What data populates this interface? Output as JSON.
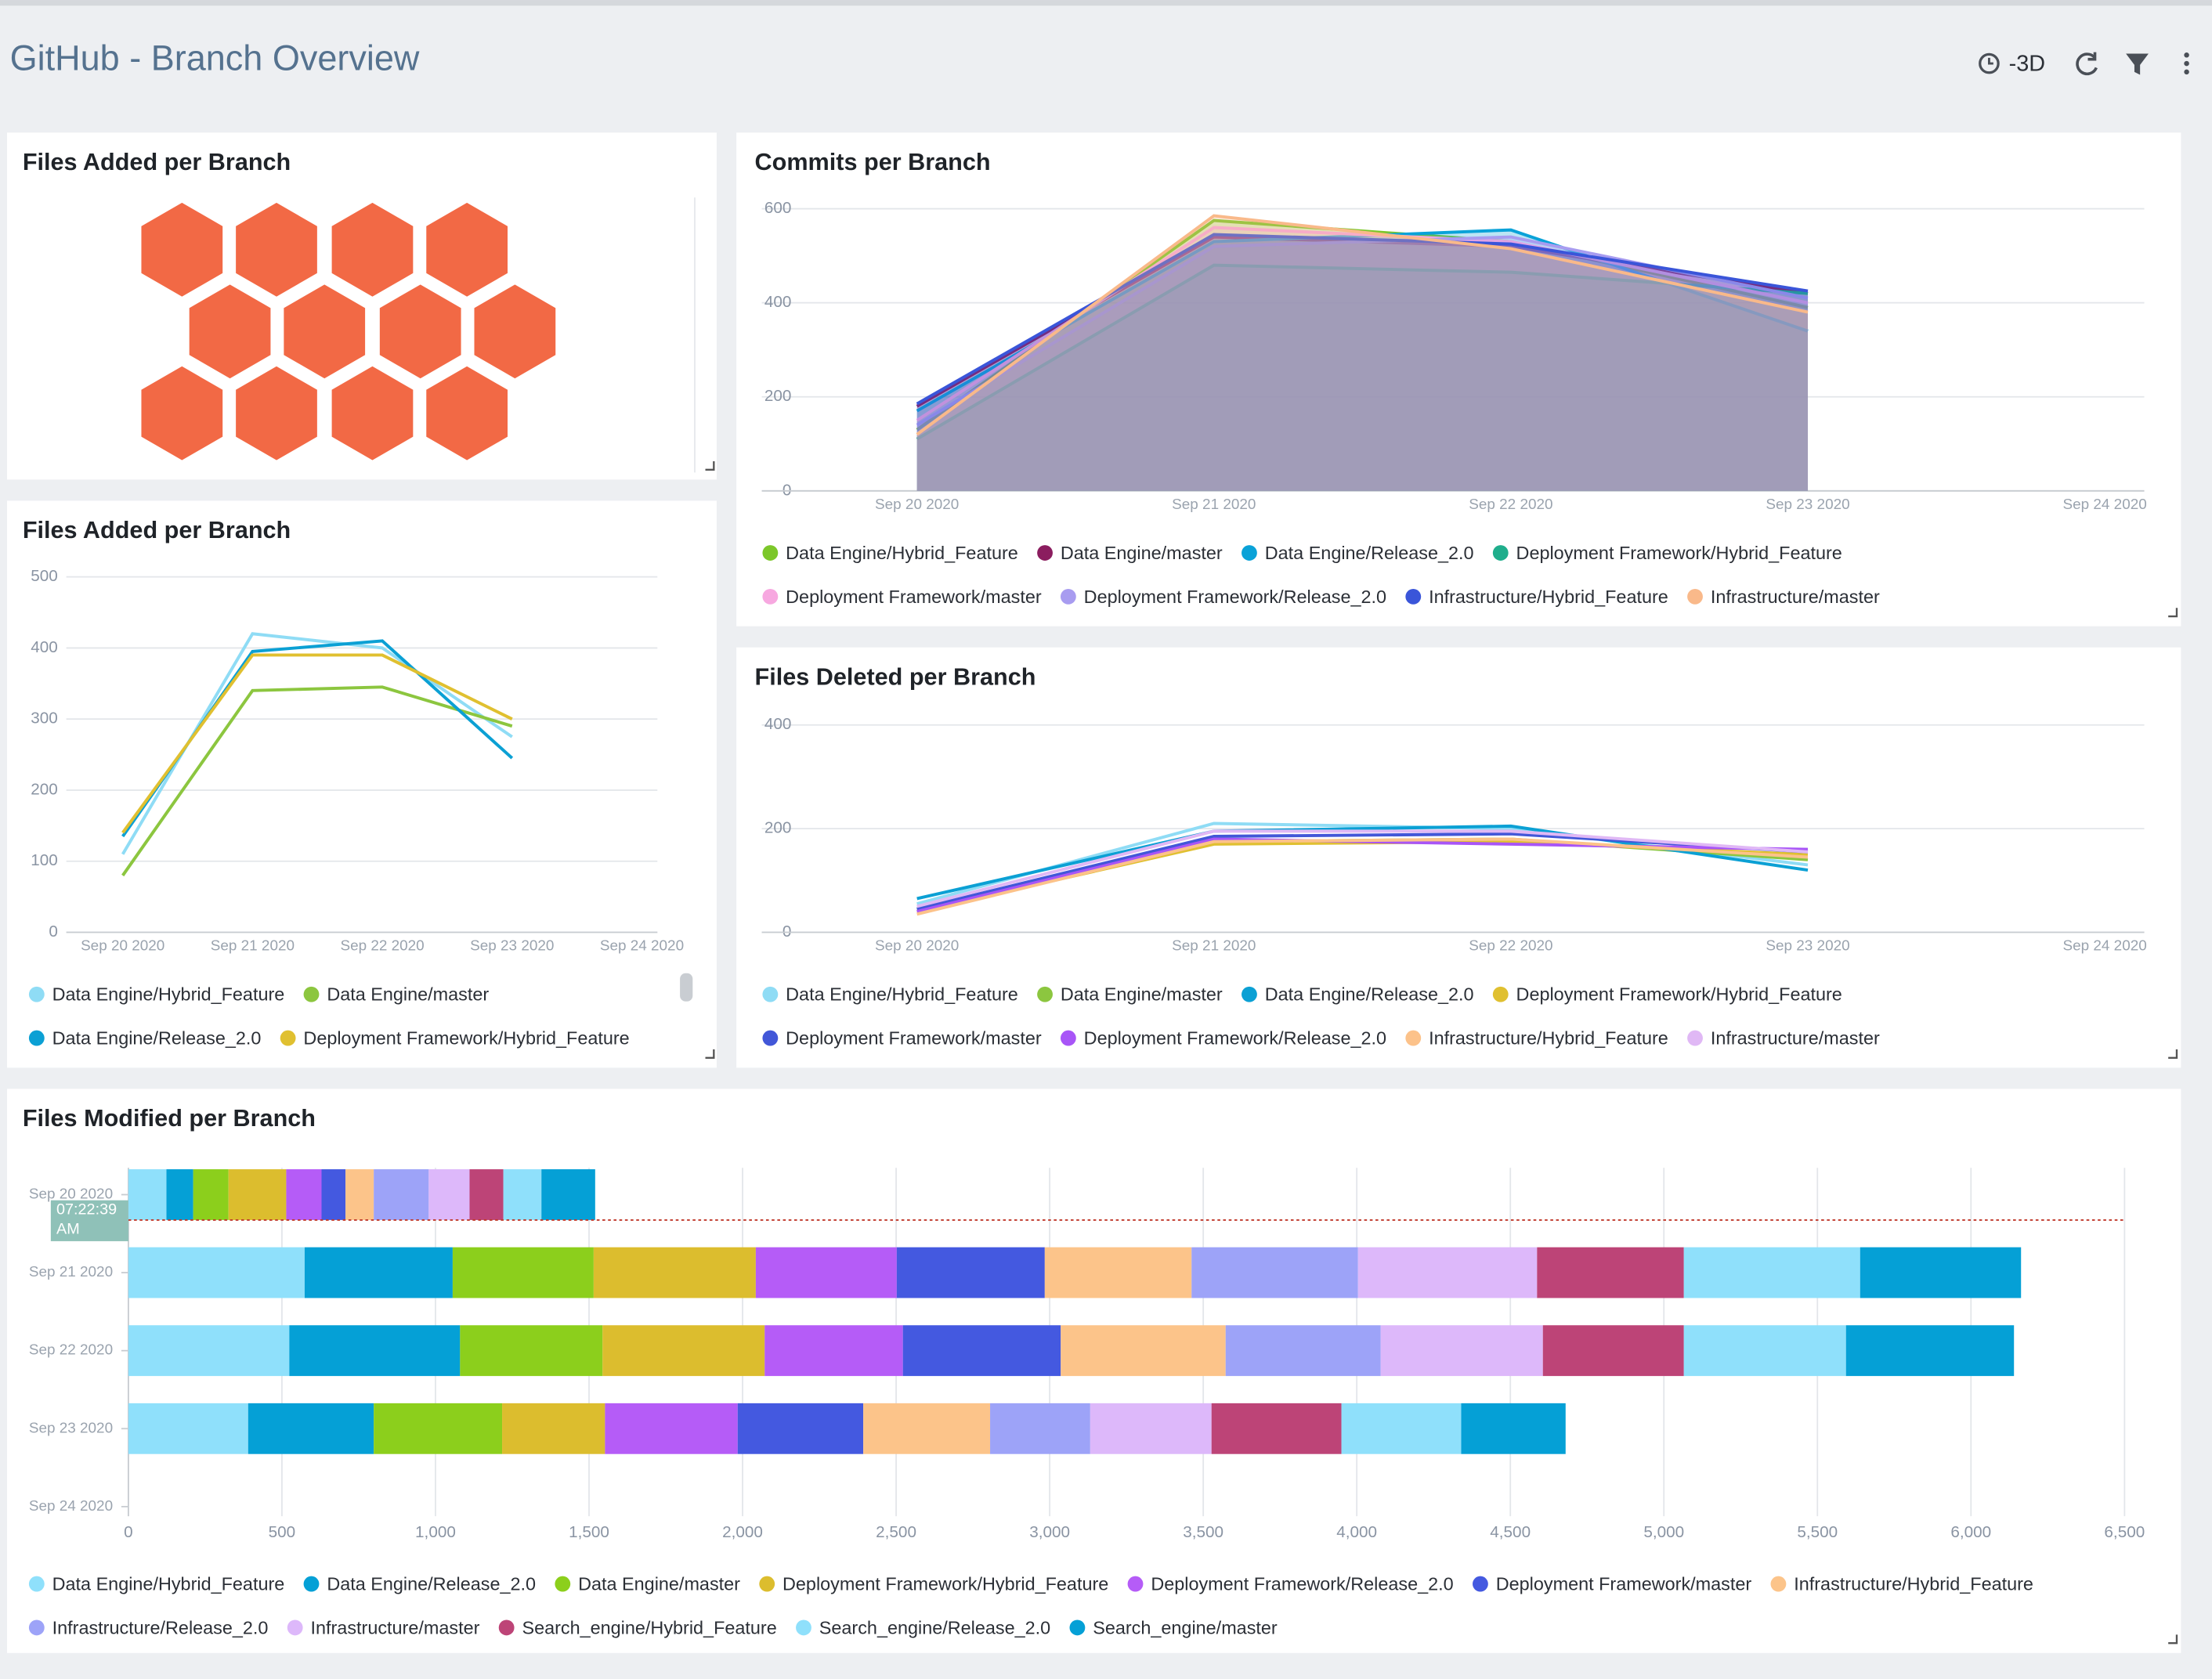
{
  "header": {
    "title": "GitHub - Branch Overview",
    "time_range": "-3D"
  },
  "chart_data": [
    {
      "type": "honeycomb",
      "title": "Files Added per Branch",
      "color": "#f26945"
    },
    {
      "type": "area",
      "title": "Commits per Branch",
      "x": [
        "Sep 20 2020",
        "Sep 21 2020",
        "Sep 22 2020",
        "Sep 23 2020",
        "Sep 24 2020"
      ],
      "ylim": [
        0,
        600
      ],
      "yticks": [
        0,
        200,
        400,
        600
      ],
      "grid": true,
      "legend": "bottom",
      "series": [
        {
          "name": "Data Engine/Hybrid_Feature",
          "color": "#7cc72a",
          "values": [
            130,
            575,
            530,
            390,
            null
          ]
        },
        {
          "name": "Data Engine/master",
          "color": "#8b1d5f",
          "values": [
            180,
            540,
            520,
            420,
            null
          ]
        },
        {
          "name": "Data Engine/Release_2.0",
          "color": "#0aa2d8",
          "values": [
            170,
            530,
            555,
            340,
            null
          ]
        },
        {
          "name": "Deployment Framework/Hybrid_Feature",
          "color": "#1fae8c",
          "values": [
            110,
            480,
            465,
            420,
            null
          ]
        },
        {
          "name": "Deployment Framework/master",
          "color": "#f7a8e0",
          "values": [
            150,
            560,
            530,
            400,
            null
          ]
        },
        {
          "name": "Deployment Framework/Release_2.0",
          "color": "#a89cf0",
          "values": [
            140,
            520,
            540,
            410,
            null
          ]
        },
        {
          "name": "Infrastructure/Hybrid_Feature",
          "color": "#3a55d9",
          "values": [
            185,
            545,
            525,
            425,
            null
          ]
        },
        {
          "name": "Infrastructure/master",
          "color": "#f9b98a",
          "values": [
            120,
            585,
            515,
            380,
            null
          ]
        }
      ]
    },
    {
      "type": "line",
      "title": "Files Added per Branch",
      "x": [
        "Sep 20 2020",
        "Sep 21 2020",
        "Sep 22 2020",
        "Sep 23 2020",
        "Sep 24 2020"
      ],
      "ylim": [
        0,
        500
      ],
      "yticks": [
        0,
        100,
        200,
        300,
        400,
        500
      ],
      "grid": true,
      "legend": "bottom",
      "series": [
        {
          "name": "Data Engine/Hybrid_Feature",
          "color": "#8fdcf5",
          "values": [
            110,
            420,
            400,
            275,
            null
          ]
        },
        {
          "name": "Data Engine/master",
          "color": "#8cc63f",
          "values": [
            80,
            340,
            345,
            290,
            null
          ]
        },
        {
          "name": "Data Engine/Release_2.0",
          "color": "#0ba0d4",
          "values": [
            135,
            395,
            410,
            245,
            null
          ]
        },
        {
          "name": "Deployment Framework/Hybrid_Feature",
          "color": "#e0c030",
          "values": [
            140,
            390,
            390,
            300,
            null
          ]
        }
      ]
    },
    {
      "type": "line",
      "title": "Files Deleted per Branch",
      "x": [
        "Sep 20 2020",
        "Sep 21 2020",
        "Sep 22 2020",
        "Sep 23 2020",
        "Sep 24 2020"
      ],
      "ylim": [
        0,
        400
      ],
      "yticks": [
        0,
        200,
        400
      ],
      "grid": true,
      "legend": "bottom",
      "series": [
        {
          "name": "Data Engine/Hybrid_Feature",
          "color": "#8fdcf5",
          "values": [
            55,
            210,
            200,
            130,
            null
          ]
        },
        {
          "name": "Data Engine/master",
          "color": "#8cc63f",
          "values": [
            45,
            175,
            180,
            140,
            null
          ]
        },
        {
          "name": "Data Engine/Release_2.0",
          "color": "#0ba0d4",
          "values": [
            65,
            195,
            205,
            120,
            null
          ]
        },
        {
          "name": "Deployment Framework/Hybrid_Feature",
          "color": "#e0c030",
          "values": [
            40,
            170,
            175,
            150,
            null
          ]
        },
        {
          "name": "Deployment Framework/master",
          "color": "#4257d8",
          "values": [
            45,
            185,
            190,
            155,
            null
          ]
        },
        {
          "name": "Deployment Framework/Release_2.0",
          "color": "#a855f7",
          "values": [
            40,
            180,
            170,
            160,
            null
          ]
        },
        {
          "name": "Infrastructure/Hybrid_Feature",
          "color": "#fcc28a",
          "values": [
            35,
            175,
            180,
            145,
            null
          ]
        },
        {
          "name": "Infrastructure/master",
          "color": "#e0b8f5",
          "values": [
            50,
            195,
            195,
            155,
            null
          ]
        }
      ]
    },
    {
      "type": "hbar_stacked",
      "title": "Files Modified per Branch",
      "categories": [
        "Sep 20 2020",
        "Sep 21 2020",
        "Sep 22 2020",
        "Sep 23 2020",
        "Sep 24 2020"
      ],
      "xlim": [
        0,
        6500
      ],
      "xticks": [
        0,
        500,
        {
          "value": 1000,
          "label": "1,000"
        },
        {
          "value": 1500,
          "label": "1,500"
        },
        {
          "value": 2000,
          "label": "2,000"
        },
        {
          "value": 2500,
          "label": "2,500"
        },
        {
          "value": 3000,
          "label": "3,000"
        },
        {
          "value": 3500,
          "label": "3,500"
        },
        {
          "value": 4000,
          "label": "4,000"
        },
        {
          "value": 4500,
          "label": "4,500"
        },
        {
          "value": 5000,
          "label": "5,000"
        },
        {
          "value": 5500,
          "label": "5,500"
        },
        {
          "value": 6000,
          "label": "6,000"
        },
        {
          "value": 6500,
          "label": "6,500"
        }
      ],
      "grid": true,
      "legend": "bottom",
      "annotation": "07:22:39 AM",
      "series": [
        {
          "name": "Data Engine/Hybrid_Feature",
          "color": "#8fe0fb",
          "values": [
            124,
            574,
            524,
            390,
            null
          ]
        },
        {
          "name": "Data Engine/Release_2.0",
          "color": "#05a0d6",
          "values": [
            87,
            482,
            556,
            409,
            null
          ]
        },
        {
          "name": "Data Engine/master",
          "color": "#8ccf1c",
          "values": [
            115,
            459,
            464,
            418,
            null
          ]
        },
        {
          "name": "Deployment Framework/Hybrid_Feature",
          "color": "#dcbd2e",
          "values": [
            188,
            528,
            528,
            335,
            null
          ]
        },
        {
          "name": "Deployment Framework/Release_2.0",
          "color": "#b55cf7",
          "values": [
            115,
            459,
            450,
            432,
            null
          ]
        },
        {
          "name": "Deployment Framework/master",
          "color": "#4459e0",
          "values": [
            78,
            482,
            514,
            409,
            null
          ]
        },
        {
          "name": "Infrastructure/Hybrid_Feature",
          "color": "#fcc48a",
          "values": [
            92,
            478,
            537,
            413,
            null
          ]
        },
        {
          "name": "Infrastructure/Release_2.0",
          "color": "#9da3f8",
          "values": [
            179,
            542,
            505,
            326,
            null
          ]
        },
        {
          "name": "Infrastructure/master",
          "color": "#ddb8fa",
          "values": [
            133,
            583,
            528,
            395,
            null
          ]
        },
        {
          "name": "Search_engine/Hybrid_Feature",
          "color": "#bd4477",
          "values": [
            110,
            478,
            459,
            423,
            null
          ]
        },
        {
          "name": "Search_engine/Release_2.0",
          "color": "#8fe0fb",
          "values": [
            124,
            574,
            528,
            390,
            null
          ]
        },
        {
          "name": "Search_engine/master",
          "color": "#05a0d6",
          "values": [
            175,
            524,
            547,
            340,
            null
          ]
        }
      ]
    }
  ]
}
